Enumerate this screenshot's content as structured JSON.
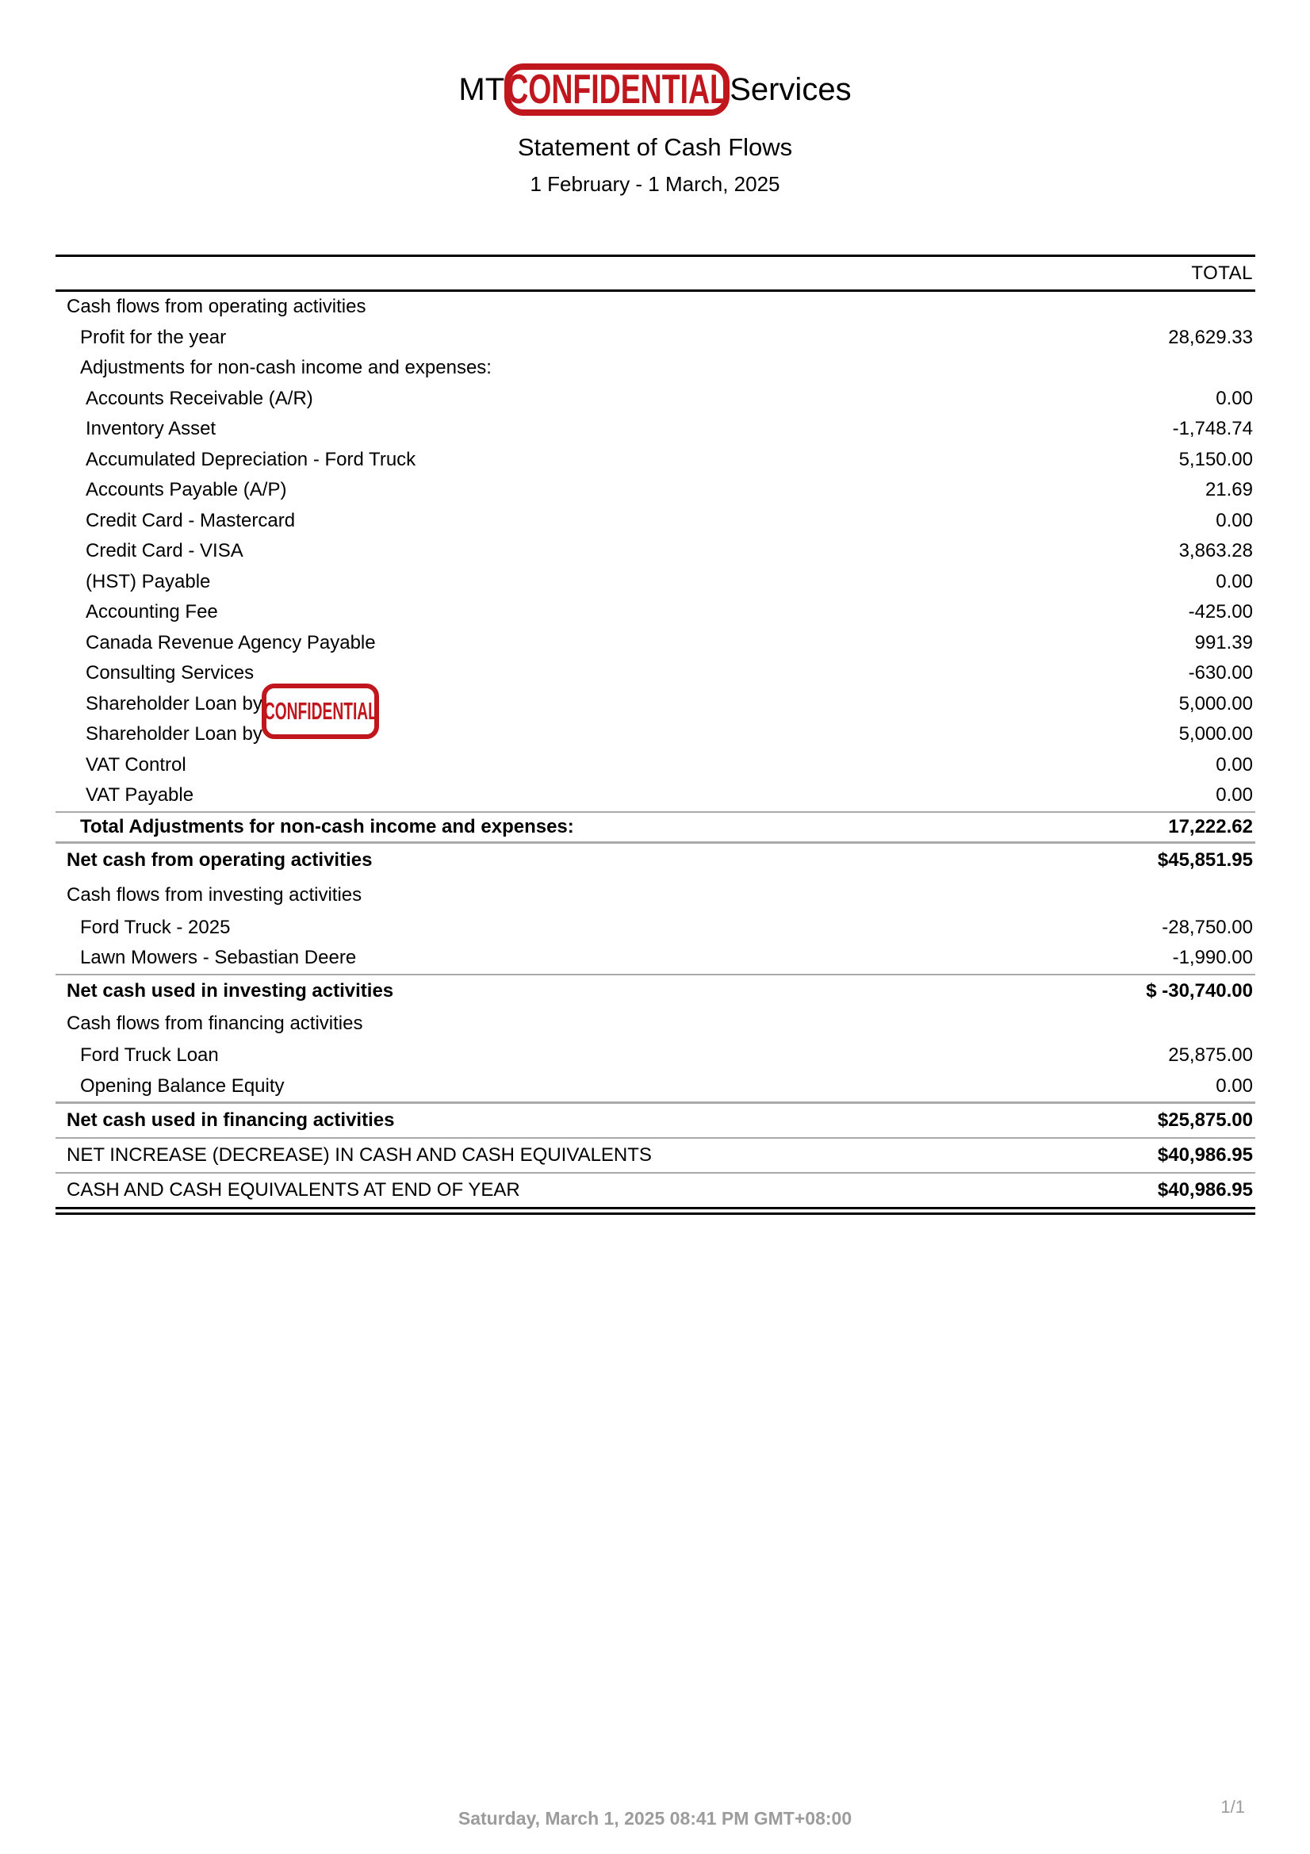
{
  "header": {
    "company_prefix": "MT",
    "company_suffix": "Services",
    "stamp_text": "CONFIDENTIAL",
    "report_title": "Statement of Cash Flows",
    "period": "1 February - 1 March, 2025"
  },
  "table": {
    "total_header": "TOTAL",
    "rows": [
      {
        "label": "Cash flows from operating activities",
        "value": ""
      },
      {
        "label": "Profit for the year",
        "value": "28,629.33"
      },
      {
        "label": "Adjustments for non-cash income and expenses:",
        "value": ""
      },
      {
        "label": "Accounts Receivable (A/R)",
        "value": "0.00"
      },
      {
        "label": "Inventory Asset",
        "value": "-1,748.74"
      },
      {
        "label": "Accumulated Depreciation - Ford Truck",
        "value": "5,150.00"
      },
      {
        "label": "Accounts Payable (A/P)",
        "value": "21.69"
      },
      {
        "label": "Credit Card - Mastercard",
        "value": "0.00"
      },
      {
        "label": "Credit Card - VISA",
        "value": "3,863.28"
      },
      {
        "label": "(HST) Payable",
        "value": "0.00"
      },
      {
        "label": "Accounting Fee",
        "value": "-425.00"
      },
      {
        "label": "Canada Revenue Agency Payable",
        "value": "991.39"
      },
      {
        "label": "Consulting Services",
        "value": "-630.00"
      },
      {
        "label": "Shareholder Loan by",
        "value": "5,000.00"
      },
      {
        "label": "Shareholder Loan by",
        "value": "5,000.00"
      },
      {
        "label": "VAT Control",
        "value": "0.00"
      },
      {
        "label": "VAT Payable",
        "value": "0.00"
      },
      {
        "label": "Total Adjustments for non-cash income and expenses:",
        "value": "17,222.62"
      },
      {
        "label": "Net cash from operating activities",
        "value": "$45,851.95"
      },
      {
        "label": "Cash flows from investing activities",
        "value": ""
      },
      {
        "label": "Ford Truck - 2025",
        "value": "-28,750.00"
      },
      {
        "label": "Lawn Mowers - Sebastian Deere",
        "value": "-1,990.00"
      },
      {
        "label": "Net cash used in investing activities",
        "value": "$ -30,740.00"
      },
      {
        "label": "Cash flows from financing activities",
        "value": ""
      },
      {
        "label": "Ford Truck Loan",
        "value": "25,875.00"
      },
      {
        "label": "Opening Balance Equity",
        "value": "0.00"
      },
      {
        "label": "Net cash used in financing activities",
        "value": "$25,875.00"
      },
      {
        "label": "NET INCREASE (DECREASE) IN CASH AND CASH EQUIVALENTS",
        "value": "$40,986.95"
      },
      {
        "label": "CASH AND CASH EQUIVALENTS AT END OF YEAR",
        "value": "$40,986.95"
      }
    ]
  },
  "overlay_stamp_text": "CONFIDENTIAL",
  "footer": {
    "timestamp": "Saturday, March 1, 2025 08:41 PM GMT+08:00",
    "page": "1/1"
  },
  "colors": {
    "stamp_red": "#c0161d",
    "separator_gray": "#a9a9a9",
    "footer_gray": "#9c9c9c",
    "rule_black": "#000000"
  }
}
